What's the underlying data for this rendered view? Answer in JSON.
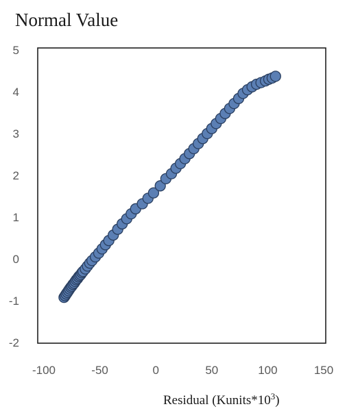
{
  "chart_data": {
    "type": "scatter",
    "title": "",
    "ylabel": "Normal Value",
    "xlabel": "Residual (Kunits*10",
    "xlabel_superscript": "3",
    "xlabel_suffix": ")",
    "xlim": [
      -100,
      150
    ],
    "ylim": [
      -2,
      5
    ],
    "xticks": [
      -100,
      -50,
      0,
      50,
      100,
      150
    ],
    "yticks": [
      -2,
      -1,
      0,
      1,
      2,
      3,
      4,
      5
    ],
    "xtick_labels": [
      "-100",
      "-50",
      "0",
      "50",
      "100",
      "150"
    ],
    "ytick_labels": [
      "-2",
      "-1",
      "0",
      "1",
      "2",
      "3",
      "4",
      "5"
    ],
    "grid": false,
    "legend": "none",
    "marker_fill": "#5b7fb4",
    "marker_edge": "#2a3f60",
    "series": [
      {
        "points": [
          [
            -82,
            -0.92
          ],
          [
            -81,
            -0.88
          ],
          [
            -80,
            -0.84
          ],
          [
            -79,
            -0.8
          ],
          [
            -78,
            -0.76
          ],
          [
            -77,
            -0.72
          ],
          [
            -76,
            -0.68
          ],
          [
            -75,
            -0.65
          ],
          [
            -74,
            -0.61
          ],
          [
            -73,
            -0.58
          ],
          [
            -72,
            -0.54
          ],
          [
            -71,
            -0.5
          ],
          [
            -70,
            -0.47
          ],
          [
            -69,
            -0.43
          ],
          [
            -68,
            -0.4
          ],
          [
            -67,
            -0.37
          ],
          [
            -66,
            -0.33
          ],
          [
            -65,
            -0.3
          ],
          [
            -63,
            -0.24
          ],
          [
            -61,
            -0.17
          ],
          [
            -59,
            -0.1
          ],
          [
            -57,
            -0.04
          ],
          [
            -54,
            0.05
          ],
          [
            -51,
            0.14
          ],
          [
            -48,
            0.24
          ],
          [
            -45,
            0.34
          ],
          [
            -42,
            0.44
          ],
          [
            -38,
            0.57
          ],
          [
            -34,
            0.71
          ],
          [
            -30,
            0.84
          ],
          [
            -26,
            0.96
          ],
          [
            -22,
            1.08
          ],
          [
            -18,
            1.2
          ],
          [
            -12,
            1.32
          ],
          [
            -7,
            1.45
          ],
          [
            -2,
            1.58
          ],
          [
            4,
            1.75
          ],
          [
            9,
            1.92
          ],
          [
            14,
            2.04
          ],
          [
            18,
            2.17
          ],
          [
            22,
            2.28
          ],
          [
            26,
            2.4
          ],
          [
            30,
            2.52
          ],
          [
            34,
            2.64
          ],
          [
            38,
            2.76
          ],
          [
            42,
            2.88
          ],
          [
            46,
            3.0
          ],
          [
            50,
            3.12
          ],
          [
            54,
            3.24
          ],
          [
            58,
            3.36
          ],
          [
            62,
            3.48
          ],
          [
            66,
            3.6
          ],
          [
            70,
            3.72
          ],
          [
            74,
            3.84
          ],
          [
            78,
            3.96
          ],
          [
            82,
            4.05
          ],
          [
            86,
            4.12
          ],
          [
            90,
            4.18
          ],
          [
            94,
            4.22
          ],
          [
            98,
            4.26
          ],
          [
            101,
            4.3
          ],
          [
            104,
            4.33
          ],
          [
            107,
            4.37
          ]
        ]
      }
    ]
  }
}
